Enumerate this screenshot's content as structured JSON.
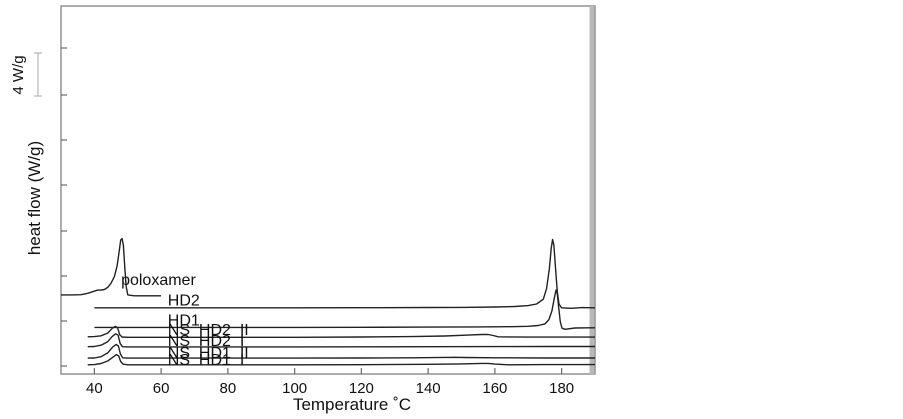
{
  "chart_data": {
    "type": "line",
    "title": "",
    "xlabel": "Temperature ˚C",
    "ylabel": "heat flow (W/g)",
    "xlim": [
      30,
      190
    ],
    "x_ticks": [
      40,
      60,
      80,
      100,
      120,
      140,
      160,
      180
    ],
    "grid": false,
    "legend": "none",
    "scale_bar": {
      "label": "4 W/g",
      "value": 4
    },
    "line_color": "#222222",
    "series": [
      {
        "name": "poloxamer",
        "label_at": [
          48,
          7.7
        ],
        "points": [
          [
            30,
            6.8
          ],
          [
            33,
            6.8
          ],
          [
            36,
            6.82
          ],
          [
            38,
            6.95
          ],
          [
            39.5,
            7.1
          ],
          [
            41,
            7.25
          ],
          [
            42,
            7.25
          ],
          [
            43,
            7.3
          ],
          [
            44,
            7.5
          ],
          [
            45,
            7.9
          ],
          [
            46,
            8.5
          ],
          [
            46.8,
            9.5
          ],
          [
            47.4,
            10.8
          ],
          [
            47.9,
            11.9
          ],
          [
            48.3,
            12.05
          ],
          [
            48.7,
            11.4
          ],
          [
            49.1,
            9.5
          ],
          [
            49.5,
            7.6
          ],
          [
            50,
            6.8
          ],
          [
            52,
            6.72
          ],
          [
            55,
            6.72
          ],
          [
            60,
            6.72
          ]
        ]
      },
      {
        "name": "HD2",
        "label_at": [
          62,
          5.8
        ],
        "points": [
          [
            40,
            5.6
          ],
          [
            60,
            5.6
          ],
          [
            80,
            5.6
          ],
          [
            100,
            5.6
          ],
          [
            120,
            5.61
          ],
          [
            140,
            5.63
          ],
          [
            150,
            5.64
          ],
          [
            160,
            5.67
          ],
          [
            166,
            5.72
          ],
          [
            170,
            5.8
          ],
          [
            172.5,
            5.95
          ],
          [
            174.5,
            6.4
          ],
          [
            175.5,
            7.4
          ],
          [
            176.3,
            9.2
          ],
          [
            176.9,
            11.2
          ],
          [
            177.3,
            11.95
          ],
          [
            177.7,
            11.4
          ],
          [
            178.2,
            9.2
          ],
          [
            178.7,
            7.1
          ],
          [
            179.2,
            5.95
          ],
          [
            180,
            5.6
          ],
          [
            183,
            5.55
          ],
          [
            186,
            5.62
          ],
          [
            190,
            5.6
          ]
        ]
      },
      {
        "name": "HD1",
        "label_at": [
          62,
          3.95
        ],
        "points": [
          [
            40,
            3.78
          ],
          [
            60,
            3.78
          ],
          [
            80,
            3.78
          ],
          [
            100,
            3.78
          ],
          [
            120,
            3.79
          ],
          [
            140,
            3.8
          ],
          [
            155,
            3.82
          ],
          [
            165,
            3.84
          ],
          [
            170,
            3.88
          ],
          [
            173,
            3.95
          ],
          [
            175,
            4.1
          ],
          [
            176.2,
            4.5
          ],
          [
            177.1,
            5.3
          ],
          [
            177.8,
            6.5
          ],
          [
            178.3,
            7.25
          ],
          [
            178.7,
            6.9
          ],
          [
            179.1,
            5.7
          ],
          [
            179.6,
            4.3
          ],
          [
            180.1,
            3.7
          ],
          [
            181,
            3.6
          ],
          [
            184,
            3.72
          ],
          [
            188,
            3.74
          ],
          [
            190,
            3.74
          ]
        ]
      },
      {
        "name": "NS  HD2  II",
        "label_at": [
          62,
          3.05
        ],
        "points": [
          [
            38,
            2.9
          ],
          [
            40,
            2.92
          ],
          [
            42,
            3.0
          ],
          [
            44,
            3.25
          ],
          [
            45.4,
            3.7
          ],
          [
            46.3,
            3.88
          ],
          [
            47,
            3.7
          ],
          [
            47.6,
            3.1
          ],
          [
            48.3,
            2.88
          ],
          [
            50,
            2.86
          ],
          [
            60,
            2.86
          ],
          [
            80,
            2.86
          ],
          [
            100,
            2.86
          ],
          [
            120,
            2.88
          ],
          [
            135,
            2.92
          ],
          [
            145,
            2.98
          ],
          [
            152,
            3.06
          ],
          [
            156,
            3.12
          ],
          [
            158,
            3.12
          ],
          [
            159.5,
            3.02
          ],
          [
            161,
            2.9
          ],
          [
            170,
            2.87
          ],
          [
            190,
            2.87
          ]
        ]
      },
      {
        "name": "NS  HD2  I",
        "label_at": [
          62,
          2.05
        ],
        "points": [
          [
            38,
            1.98
          ],
          [
            40,
            2.0
          ],
          [
            42,
            2.12
          ],
          [
            44,
            2.45
          ],
          [
            45.4,
            2.95
          ],
          [
            46.4,
            3.18
          ],
          [
            47.1,
            3.05
          ],
          [
            47.7,
            2.3
          ],
          [
            48.4,
            1.98
          ],
          [
            50,
            1.96
          ],
          [
            70,
            1.96
          ],
          [
            100,
            1.96
          ],
          [
            120,
            1.97
          ],
          [
            140,
            1.98
          ],
          [
            160,
            1.99
          ],
          [
            175,
            2.0
          ],
          [
            190,
            2.0
          ]
        ]
      },
      {
        "name": "NS  HD1  II",
        "label_at": [
          62,
          0.95
        ],
        "points": [
          [
            38,
            0.92
          ],
          [
            40,
            0.93
          ],
          [
            42,
            1.05
          ],
          [
            44,
            1.4
          ],
          [
            45.5,
            1.95
          ],
          [
            46.5,
            2.2
          ],
          [
            47.2,
            2.05
          ],
          [
            47.8,
            1.3
          ],
          [
            48.5,
            0.95
          ],
          [
            50,
            0.92
          ],
          [
            70,
            0.92
          ],
          [
            100,
            0.92
          ],
          [
            120,
            0.93
          ],
          [
            135,
            0.95
          ],
          [
            145,
            0.99
          ],
          [
            148,
            1.0
          ],
          [
            151,
            0.98
          ],
          [
            160,
            0.95
          ],
          [
            175,
            0.93
          ],
          [
            190,
            0.93
          ]
        ]
      },
      {
        "name": "NS  HD1  I",
        "label_at": [
          62,
          0.3
        ],
        "points": [
          [
            38,
            0.3
          ],
          [
            40,
            0.32
          ],
          [
            42,
            0.42
          ],
          [
            44,
            0.65
          ],
          [
            45.5,
            1.0
          ],
          [
            46.6,
            1.25
          ],
          [
            47.3,
            1.12
          ],
          [
            47.9,
            0.6
          ],
          [
            48.6,
            0.35
          ],
          [
            50,
            0.3
          ],
          [
            70,
            0.3
          ],
          [
            100,
            0.3
          ],
          [
            120,
            0.31
          ],
          [
            140,
            0.34
          ],
          [
            150,
            0.38
          ],
          [
            156,
            0.43
          ],
          [
            158,
            0.43
          ],
          [
            160,
            0.36
          ],
          [
            164,
            0.3
          ],
          [
            175,
            0.32
          ],
          [
            190,
            0.32
          ]
        ]
      }
    ]
  }
}
